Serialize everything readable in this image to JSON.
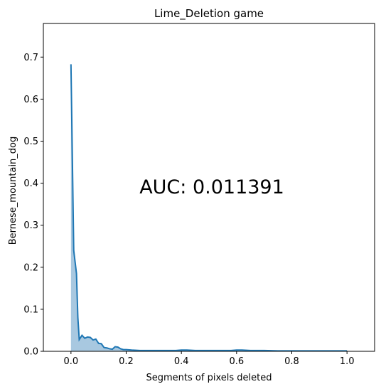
{
  "chart_data": {
    "type": "area",
    "title": "Lime_Deletion game",
    "xlabel": "Segments of pixels deleted",
    "ylabel": "Bernese_mountain_dog",
    "xlim": [
      -0.1,
      1.1
    ],
    "ylim": [
      0,
      0.78
    ],
    "xticks": [
      0.0,
      0.2,
      0.4,
      0.6,
      0.8,
      1.0
    ],
    "xtick_labels": [
      "0.0",
      "0.2",
      "0.4",
      "0.6",
      "0.8",
      "1.0"
    ],
    "yticks": [
      0.0,
      0.1,
      0.2,
      0.3,
      0.4,
      0.5,
      0.6,
      0.7
    ],
    "ytick_labels": [
      "0.0",
      "0.1",
      "0.2",
      "0.3",
      "0.4",
      "0.5",
      "0.6",
      "0.7"
    ],
    "grid": false,
    "legend": "none",
    "annotation": "AUC: 0.011391",
    "line_color": "#1f77b4",
    "fill_color": "#a8c8e0",
    "series": [
      {
        "x": [
          0.0,
          0.01,
          0.02,
          0.025,
          0.03,
          0.04,
          0.05,
          0.06,
          0.07,
          0.08,
          0.09,
          0.1,
          0.11,
          0.12,
          0.13,
          0.14,
          0.15,
          0.16,
          0.17,
          0.18,
          0.19,
          0.2,
          0.22,
          0.25,
          0.3,
          0.35,
          0.38,
          0.4,
          0.42,
          0.45,
          0.5,
          0.55,
          0.58,
          0.6,
          0.62,
          0.65,
          0.7,
          0.75,
          0.8,
          0.85,
          0.9,
          0.95,
          1.0
        ],
        "y": [
          0.683,
          0.24,
          0.185,
          0.08,
          0.028,
          0.038,
          0.031,
          0.034,
          0.033,
          0.027,
          0.029,
          0.019,
          0.018,
          0.009,
          0.008,
          0.006,
          0.005,
          0.011,
          0.01,
          0.006,
          0.004,
          0.004,
          0.003,
          0.002,
          0.002,
          0.002,
          0.002,
          0.003,
          0.003,
          0.002,
          0.002,
          0.002,
          0.002,
          0.003,
          0.003,
          0.002,
          0.002,
          0.001,
          0.001,
          0.001,
          0.001,
          0.001,
          0.001
        ]
      }
    ]
  }
}
